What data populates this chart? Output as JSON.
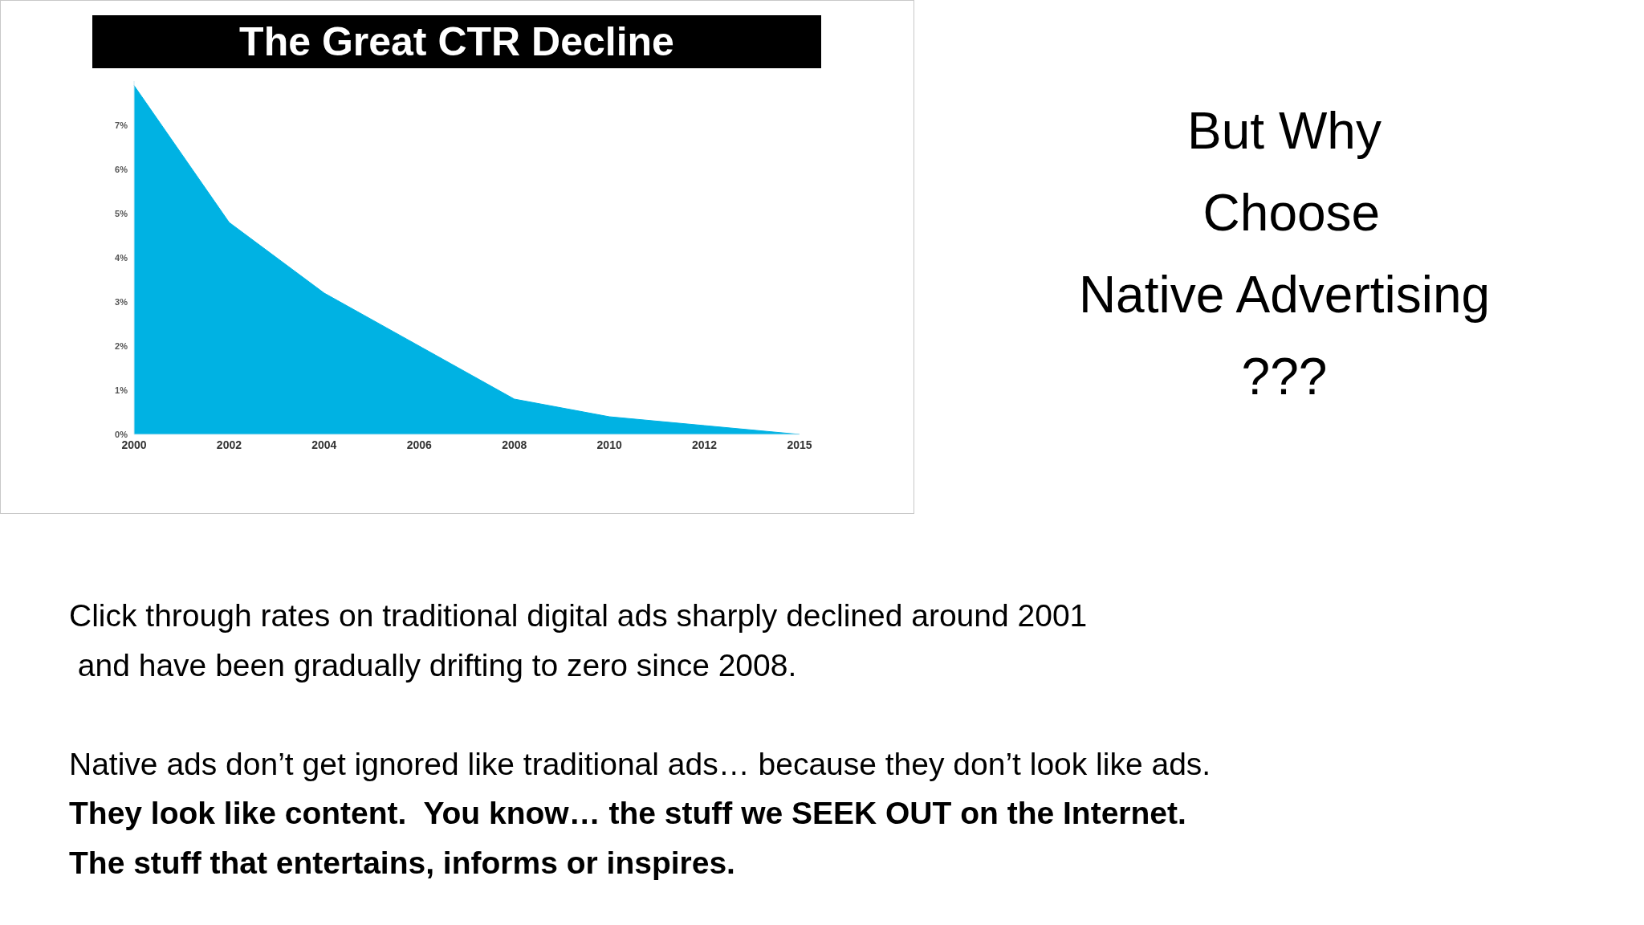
{
  "chart_data": {
    "type": "area",
    "title": "The Great CTR Decline",
    "categories": [
      "2000",
      "2002",
      "2004",
      "2006",
      "2008",
      "2010",
      "2012",
      "2015"
    ],
    "values": [
      7.9,
      4.8,
      3.2,
      2.0,
      0.8,
      0.4,
      0.2,
      0
    ],
    "color": "#00b2e3",
    "ylim": [
      0,
      8
    ],
    "yticks": [
      {
        "value": 0,
        "label": "0%"
      },
      {
        "value": 1,
        "label": "1%"
      },
      {
        "value": 2,
        "label": "2%"
      },
      {
        "value": 3,
        "label": "3%"
      },
      {
        "value": 4,
        "label": "4%"
      },
      {
        "value": 5,
        "label": "5%"
      },
      {
        "value": 6,
        "label": "6%"
      },
      {
        "value": 7,
        "label": "7%"
      }
    ],
    "annotations": [
      "But Why\n Choose\nNative Advertising\n???",
      "Click through rates on traditional digital ads sharply declined around 2001\n and have been gradually drifting to zero since 2008.",
      "Native ads don’t get ignored like traditional ads… because they don’t look like ads.",
      "They look like content.  You know… the stuff we SEEK OUT on the Internet.",
      "The stuff that entertains, informs or inspires."
    ]
  }
}
